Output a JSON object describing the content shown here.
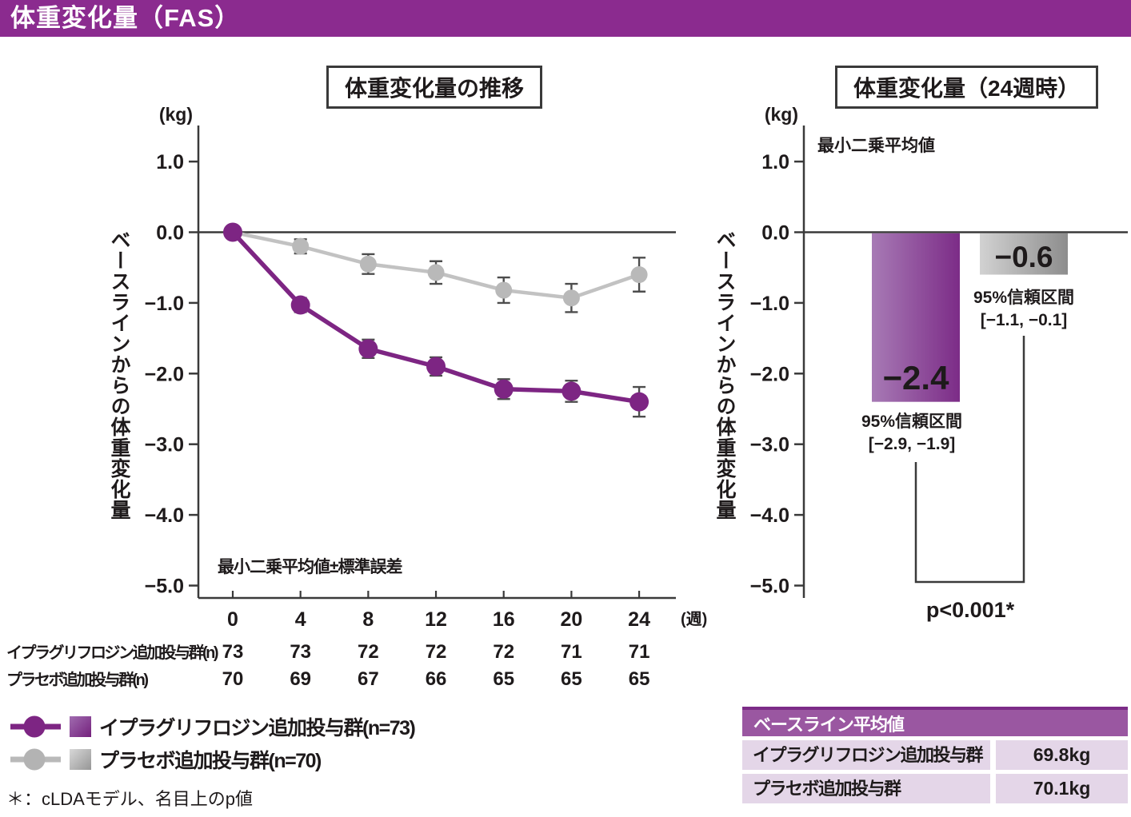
{
  "page_title": "体重変化量（FAS）",
  "colors": {
    "header_bg": "#8b2b8f",
    "axis": "#3a3a3a",
    "error_bar": "#4d4d4d",
    "purple_series": "#7d2583",
    "gray_series_line": "#c2c2c2",
    "gray_series_marker": "#b9b9b9",
    "bar_purple_light": "#a77ab5",
    "bar_purple_dark": "#7c2c87",
    "bar_gray_light": "#d2d2d2",
    "bar_gray_dark": "#8d8d8d",
    "table_header_bg": "#9a57a1",
    "table_header_edge": "#7c2c87",
    "table_row_bg": "#e4d6e8"
  },
  "chart_data": [
    {
      "type": "line",
      "title": "体重変化量の推移",
      "unit_label": "(kg)",
      "x_unit_label": "(週)",
      "ylabel": "ベースラインからの体重変化量",
      "annotation": "最小二乗平均値±標準誤差",
      "x": [
        0,
        4,
        8,
        12,
        16,
        20,
        24
      ],
      "xtick_labels": [
        "0",
        "4",
        "8",
        "12",
        "16",
        "20",
        "24"
      ],
      "ylim": [
        -5.0,
        1.5
      ],
      "yticks": [
        1.0,
        0.0,
        -1.0,
        -2.0,
        -3.0,
        -4.0,
        -5.0
      ],
      "ytick_labels": [
        "1.0",
        "0.0",
        "−1.0",
        "−2.0",
        "−3.0",
        "−4.0",
        "−5.0"
      ],
      "grid": false,
      "series": [
        {
          "name": "イプラグリフロジン追加投与群(n=73)",
          "color": "#7d2583",
          "marker_color": "#7d2583",
          "values": [
            0.0,
            -1.03,
            -1.65,
            -1.9,
            -2.22,
            -2.25,
            -2.4
          ],
          "se": [
            0,
            0.1,
            0.13,
            0.13,
            0.14,
            0.15,
            0.21
          ]
        },
        {
          "name": "プラセボ追加投与群(n=70)",
          "color": "#c2c2c2",
          "marker_color": "#b9b9b9",
          "values": [
            0.0,
            -0.2,
            -0.45,
            -0.57,
            -0.82,
            -0.93,
            -0.6
          ],
          "se": [
            0,
            0.1,
            0.14,
            0.16,
            0.18,
            0.2,
            0.24
          ]
        }
      ]
    },
    {
      "type": "bar",
      "title": "体重変化量（24週時）",
      "unit_label": "(kg)",
      "ylabel": "ベースラインからの体重変化量",
      "annotation": "最小二乗平均値",
      "categories": [
        "イプラグリフロジン追加投与群",
        "プラセボ追加投与群"
      ],
      "values": [
        -2.4,
        -0.6
      ],
      "value_labels": [
        "−2.4",
        "−0.6"
      ],
      "ci": [
        {
          "line1": "95%信頼区間",
          "line2": "[−2.9, −1.9]"
        },
        {
          "line1": "95%信頼区間",
          "line2": "[−1.1, −0.1]"
        }
      ],
      "p_label": "p<0.001*",
      "ylim": [
        -5.0,
        1.5
      ],
      "yticks": [
        1.0,
        0.0,
        -1.0,
        -2.0,
        -3.0,
        -4.0,
        -5.0
      ],
      "ytick_labels": [
        "1.0",
        "0.0",
        "−1.0",
        "−2.0",
        "−3.0",
        "−4.0",
        "−5.0"
      ],
      "grid": false
    }
  ],
  "n_table": {
    "rows": [
      {
        "label": "イプラグリフロジン追加投与群(n)",
        "values": [
          "73",
          "73",
          "72",
          "72",
          "72",
          "71",
          "71"
        ]
      },
      {
        "label": "プラセボ追加投与群(n)",
        "values": [
          "70",
          "69",
          "67",
          "66",
          "65",
          "65",
          "65"
        ]
      }
    ]
  },
  "legend": {
    "items": [
      {
        "label": "イプラグリフロジン追加投与群(n=73)",
        "line_color": "#7d2583",
        "marker_color": "#7d2583",
        "square_from": "#a06cb0",
        "square_to": "#74217c"
      },
      {
        "label": "プラセボ追加投与群(n=70)",
        "line_color": "#b9b9b9",
        "marker_color": "#b3b3b3",
        "square_from": "#d8d8d8",
        "square_to": "#969696"
      }
    ]
  },
  "footnote": "＊：cLDAモデル、名目上のp値",
  "baseline_table": {
    "header": "ベースライン平均値",
    "rows": [
      {
        "label": "イプラグリフロジン追加投与群",
        "value": "69.8kg"
      },
      {
        "label": "プラセボ追加投与群",
        "value": "70.1kg"
      }
    ]
  }
}
